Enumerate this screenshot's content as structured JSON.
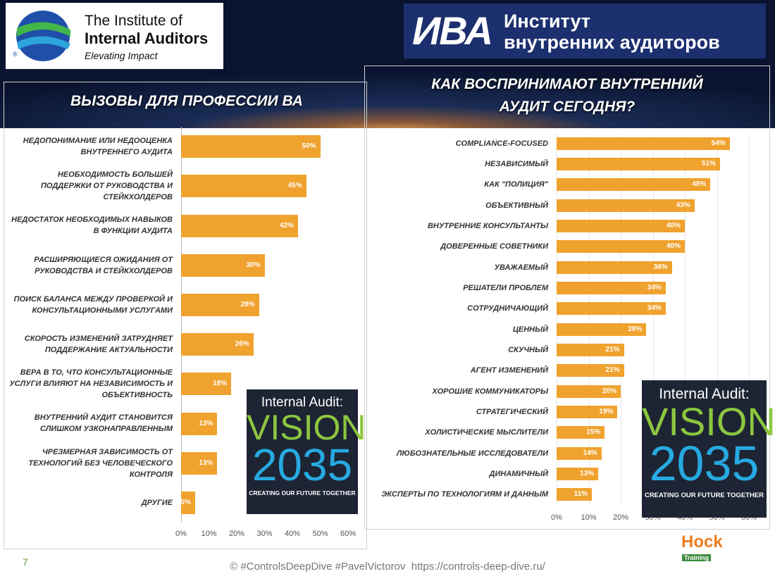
{
  "logos": {
    "iia_line1": "The Institute of",
    "iia_line2": "Internal Auditors",
    "iia_tagline": "Elevating Impact",
    "iia_mark": "®",
    "iva_abbr": "ИВА",
    "iva_line1": "Институт",
    "iva_line2": "внутренних аудиторов"
  },
  "vision": {
    "line1": "Internal Audit:",
    "word": "VISION",
    "year": "2035",
    "slogan": "CREATING OUR FUTURE TOGETHER"
  },
  "footer": {
    "page": "7",
    "credit": "© #ControlsDeepDive #PavelVictorov  https://controls-deep-dive.ru/",
    "brand": "Hock",
    "brand_sub": "Training"
  },
  "chart_data": [
    {
      "type": "hbar",
      "title": "ВЫЗОВЫ ДЛЯ ПРОФЕССИИ ВА",
      "color": "#f0a22e",
      "grid": false,
      "categories": [
        "НЕДОПОНИМАНИЕ ИЛИ НЕДООЦЕНКА ВНУТРЕННЕГО АУДИТА",
        "НЕОБХОДИМОСТЬ БОЛЬШЕЙ ПОДДЕРЖКИ ОТ РУКОВОДСТВА И СТЕЙКХОЛДЕРОВ",
        "НЕДОСТАТОК НЕОБХОДИМЫХ НАВЫКОВ В ФУНКЦИИ АУДИТА",
        "РАСШИРЯЮЩИЕСЯ ОЖИДАНИЯ ОТ РУКОВОДСТВА И СТЕЙКХОЛДЕРОВ",
        "ПОИСК БАЛАНСА МЕЖДУ ПРОВЕРКОЙ И КОНСУЛЬТАЦИОННЫМИ УСЛУГАМИ",
        "СКОРОСТЬ ИЗМЕНЕНИЙ ЗАТРУДНЯЕТ ПОДДЕРЖАНИЕ АКТУАЛЬНОСТИ",
        "ВЕРА В ТО, ЧТО КОНСУЛЬТАЦИОННЫЕ УСЛУГИ ВЛИЯЮТ НА НЕЗАВИСИМОСТЬ И ОБЪЕКТИВНОСТЬ",
        "ВНУТРЕННИЙ АУДИТ СТАНОВИТСЯ СЛИШКОМ УЗКОНАПРАВЛЕННЫМ",
        "ЧРЕЗМЕРНАЯ ЗАВИСИМОСТЬ ОТ ТЕХНОЛОГИЙ БЕЗ ЧЕЛОВЕЧЕСКОГО КОНТРОЛЯ",
        "ДРУГИЕ"
      ],
      "values": [
        50,
        45,
        42,
        30,
        28,
        26,
        18,
        13,
        13,
        5
      ],
      "value_labels": [
        "50%",
        "45%",
        "42%",
        "30%",
        "28%",
        "26%",
        "18%",
        "13%",
        "13%",
        "5%"
      ],
      "xlim": [
        0,
        60
      ],
      "xticks": [
        {
          "value": 0,
          "label": "0%"
        },
        {
          "value": 10,
          "label": "10%"
        },
        {
          "value": 20,
          "label": "20%"
        },
        {
          "value": 30,
          "label": "30%"
        },
        {
          "value": 40,
          "label": "40%"
        },
        {
          "value": 50,
          "label": "50%"
        },
        {
          "value": 60,
          "label": "60%"
        }
      ]
    },
    {
      "type": "hbar",
      "title": "КАК ВОСПРИНИМАЮТ ВНУТРЕННИЙ АУДИТ СЕГОДНЯ?",
      "color": "#f0a22e",
      "grid": true,
      "categories": [
        "COMPLIANCE-FOCUSED",
        "НЕЗАВИСИМЫЙ",
        "КАК \"ПОЛИЦИЯ\"",
        "ОБЪЕКТИВНЫЙ",
        "ВНУТРЕННИЕ КОНСУЛЬТАНТЫ",
        "ДОВЕРЕННЫЕ СОВЕТНИКИ",
        "УВАЖАЕМЫЙ",
        "РЕШАТЕЛИ ПРОБЛЕМ",
        "СОТРУДНИЧАЮЩИЙ",
        "ЦЕННЫЙ",
        "СКУЧНЫЙ",
        "АГЕНТ ИЗМЕНЕНИЙ",
        "ХОРОШИЕ КОММУНИКАТОРЫ",
        "СТРАТЕГИЧЕСКИЙ",
        "ХОЛИСТИЧЕСКИЕ МЫСЛИТЕЛИ",
        "ЛЮБОЗНАТЕЛЬНЫЕ ИССЛЕДОВАТЕЛИ",
        "ДИНАМИЧНЫЙ",
        "ЭКСПЕРТЫ ПО ТЕХНОЛОГИЯМ И ДАННЫМ"
      ],
      "values": [
        54,
        51,
        48,
        43,
        40,
        40,
        36,
        34,
        34,
        28,
        21,
        21,
        20,
        19,
        15,
        14,
        13,
        11
      ],
      "value_labels": [
        "54%",
        "51%",
        "48%",
        "43%",
        "40%",
        "40%",
        "36%",
        "34%",
        "34%",
        "28%",
        "21%",
        "21%",
        "20%",
        "19%",
        "15%",
        "14%",
        "13%",
        "11%"
      ],
      "xlim": [
        0,
        60
      ],
      "xticks": [
        {
          "value": 0,
          "label": "0%"
        },
        {
          "value": 10,
          "label": "10%"
        },
        {
          "value": 20,
          "label": "20%"
        },
        {
          "value": 30,
          "label": "30%"
        },
        {
          "value": 40,
          "label": "40%"
        },
        {
          "value": 50,
          "label": "50%"
        },
        {
          "value": 60,
          "label": "60%"
        }
      ]
    }
  ]
}
